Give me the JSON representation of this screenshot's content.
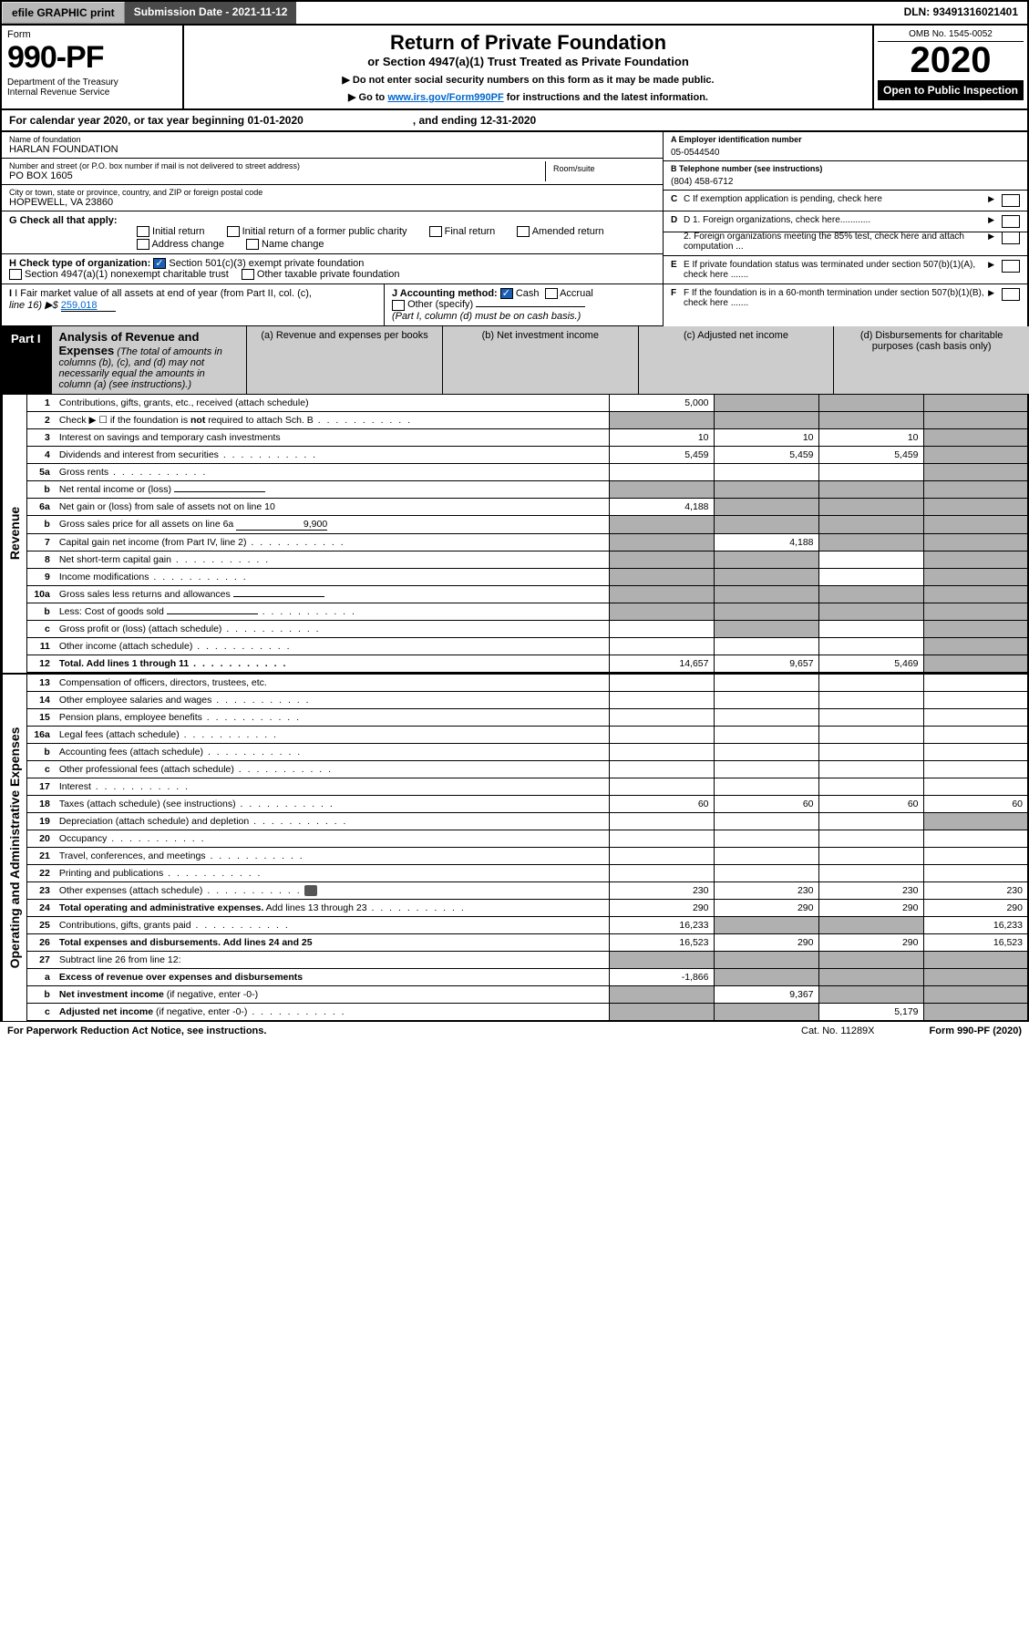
{
  "topbar": {
    "efile": "efile GRAPHIC print",
    "submission": "Submission Date - 2021-11-12",
    "dln": "DLN: 93491316021401"
  },
  "header": {
    "form_label": "Form",
    "form_num": "990-PF",
    "dept": "Department of the Treasury\nInternal Revenue Service",
    "title": "Return of Private Foundation",
    "subtitle": "or Section 4947(a)(1) Trust Treated as Private Foundation",
    "note1": "▶ Do not enter social security numbers on this form as it may be made public.",
    "note2_pre": "▶ Go to ",
    "note2_link": "www.irs.gov/Form990PF",
    "note2_post": " for instructions and the latest information.",
    "omb": "OMB No. 1545-0052",
    "year": "2020",
    "open": "Open to Public Inspection"
  },
  "cal": {
    "text": "For calendar year 2020, or tax year beginning 01-01-2020",
    "ending": ", and ending 12-31-2020"
  },
  "ident": {
    "name_lbl": "Name of foundation",
    "name": "HARLAN FOUNDATION",
    "addr_lbl": "Number and street (or P.O. box number if mail is not delivered to street address)",
    "addr": "PO BOX 1605",
    "room_lbl": "Room/suite",
    "city_lbl": "City or town, state or province, country, and ZIP or foreign postal code",
    "city": "HOPEWELL, VA  23860",
    "a_lbl": "A Employer identification number",
    "a_val": "05-0544540",
    "b_lbl": "B Telephone number (see instructions)",
    "b_val": "(804) 458-6712",
    "c_lbl": "C If exemption application is pending, check here",
    "d1_lbl": "D 1. Foreign organizations, check here............",
    "d2_lbl": "2. Foreign organizations meeting the 85% test, check here and attach computation ...",
    "e_lbl": "E  If private foundation status was terminated under section 507(b)(1)(A), check here .......",
    "f_lbl": "F  If the foundation is in a 60-month termination under section 507(b)(1)(B), check here .......",
    "g_lbl": "G Check all that apply:",
    "g_opts": [
      "Initial return",
      "Initial return of a former public charity",
      "Final return",
      "Amended return",
      "Address change",
      "Name change"
    ],
    "h_lbl": "H Check type of organization:",
    "h_opts": [
      "Section 501(c)(3) exempt private foundation",
      "Section 4947(a)(1) nonexempt charitable trust",
      "Other taxable private foundation"
    ],
    "i_lbl": "I Fair market value of all assets at end of year (from Part II, col. (c),",
    "i_line": "line 16) ▶$",
    "i_val": "259,018",
    "j_lbl": "J Accounting method:",
    "j_opts": [
      "Cash",
      "Accrual"
    ],
    "j_other": "Other (specify)",
    "j_note": "(Part I, column (d) must be on cash basis.)"
  },
  "part1": {
    "tag": "Part I",
    "title": "Analysis of Revenue and Expenses",
    "sub": "(The total of amounts in columns (b), (c), and (d) may not necessarily equal the amounts in column (a) (see instructions).)",
    "cols": {
      "a": "(a)    Revenue and expenses per books",
      "b": "(b)    Net investment income",
      "c": "(c)    Adjusted net income",
      "d": "(d)   Disbursements for charitable purposes (cash basis only)"
    },
    "side_rev": "Revenue",
    "side_exp": "Operating and Administrative Expenses"
  },
  "rows": [
    {
      "n": "1",
      "lbl": "Contributions, gifts, grants, etc., received (attach schedule)",
      "a": "5,000",
      "grey": [
        "b",
        "c",
        "d"
      ]
    },
    {
      "n": "2",
      "lbl": "Check ▶ ☐ if the foundation is <b>not</b> required to attach Sch. B",
      "dots": true,
      "grey": [
        "a",
        "b",
        "c",
        "d"
      ]
    },
    {
      "n": "3",
      "lbl": "Interest on savings and temporary cash investments",
      "a": "10",
      "b": "10",
      "c": "10",
      "grey": [
        "d"
      ]
    },
    {
      "n": "4",
      "lbl": "Dividends and interest from securities",
      "a": "5,459",
      "b": "5,459",
      "c": "5,459",
      "dots": true,
      "grey": [
        "d"
      ]
    },
    {
      "n": "5a",
      "lbl": "Gross rents",
      "dots": true,
      "grey": [
        "d"
      ]
    },
    {
      "n": "b",
      "lbl": "Net rental income or (loss)",
      "inline": true,
      "grey": [
        "a",
        "b",
        "c",
        "d"
      ]
    },
    {
      "n": "6a",
      "lbl": "Net gain or (loss) from sale of assets not on line 10",
      "a": "4,188",
      "grey": [
        "b",
        "c",
        "d"
      ]
    },
    {
      "n": "b",
      "lbl": "Gross sales price for all assets on line 6a",
      "inline": true,
      "inline_val": "9,900",
      "grey": [
        "a",
        "b",
        "c",
        "d"
      ]
    },
    {
      "n": "7",
      "lbl": "Capital gain net income (from Part IV, line 2)",
      "dots": true,
      "b": "4,188",
      "grey": [
        "a",
        "c",
        "d"
      ]
    },
    {
      "n": "8",
      "lbl": "Net short-term capital gain",
      "dots": true,
      "grey": [
        "a",
        "b",
        "d"
      ]
    },
    {
      "n": "9",
      "lbl": "Income modifications",
      "dots": true,
      "grey": [
        "a",
        "b",
        "d"
      ]
    },
    {
      "n": "10a",
      "lbl": "Gross sales less returns and allowances",
      "inline": true,
      "grey": [
        "a",
        "b",
        "c",
        "d"
      ]
    },
    {
      "n": "b",
      "lbl": "Less: Cost of goods sold",
      "inline": true,
      "dots": true,
      "grey": [
        "a",
        "b",
        "c",
        "d"
      ]
    },
    {
      "n": "c",
      "lbl": "Gross profit or (loss) (attach schedule)",
      "dots": true,
      "grey": [
        "b",
        "d"
      ]
    },
    {
      "n": "11",
      "lbl": "Other income (attach schedule)",
      "dots": true,
      "grey": [
        "d"
      ]
    },
    {
      "n": "12",
      "lbl": "<b>Total.</b> Add lines 1 through 11",
      "dots": true,
      "a": "14,657",
      "b": "9,657",
      "c": "5,469",
      "grey": [
        "d"
      ],
      "bold": true
    }
  ],
  "exp_rows": [
    {
      "n": "13",
      "lbl": "Compensation of officers, directors, trustees, etc."
    },
    {
      "n": "14",
      "lbl": "Other employee salaries and wages",
      "dots": true
    },
    {
      "n": "15",
      "lbl": "Pension plans, employee benefits",
      "dots": true
    },
    {
      "n": "16a",
      "lbl": "Legal fees (attach schedule)",
      "dots": true
    },
    {
      "n": "b",
      "lbl": "Accounting fees (attach schedule)",
      "dots": true
    },
    {
      "n": "c",
      "lbl": "Other professional fees (attach schedule)",
      "dots": true
    },
    {
      "n": "17",
      "lbl": "Interest",
      "dots": true
    },
    {
      "n": "18",
      "lbl": "Taxes (attach schedule) (see instructions)",
      "dots": true,
      "a": "60",
      "b": "60",
      "c": "60",
      "d": "60"
    },
    {
      "n": "19",
      "lbl": "Depreciation (attach schedule) and depletion",
      "dots": true,
      "grey": [
        "d"
      ]
    },
    {
      "n": "20",
      "lbl": "Occupancy",
      "dots": true
    },
    {
      "n": "21",
      "lbl": "Travel, conferences, and meetings",
      "dots": true
    },
    {
      "n": "22",
      "lbl": "Printing and publications",
      "dots": true
    },
    {
      "n": "23",
      "lbl": "Other expenses (attach schedule)",
      "dots": true,
      "attach": true,
      "a": "230",
      "b": "230",
      "c": "230",
      "d": "230"
    },
    {
      "n": "24",
      "lbl": "<b>Total operating and administrative expenses.</b> Add lines 13 through 23",
      "dots": true,
      "a": "290",
      "b": "290",
      "c": "290",
      "d": "290"
    },
    {
      "n": "25",
      "lbl": "Contributions, gifts, grants paid",
      "dots": true,
      "a": "16,233",
      "d": "16,233",
      "grey": [
        "b",
        "c"
      ]
    },
    {
      "n": "26",
      "lbl": "<b>Total expenses and disbursements.</b> Add lines 24 and 25",
      "a": "16,523",
      "b": "290",
      "c": "290",
      "d": "16,523",
      "bold": true
    },
    {
      "n": "27",
      "lbl": "Subtract line 26 from line 12:",
      "grey": [
        "a",
        "b",
        "c",
        "d"
      ]
    },
    {
      "n": "a",
      "lbl": "<b>Excess of revenue over expenses and disbursements</b>",
      "a": "-1,866",
      "grey": [
        "b",
        "c",
        "d"
      ]
    },
    {
      "n": "b",
      "lbl": "<b>Net investment income</b> (if negative, enter -0-)",
      "b": "9,367",
      "grey": [
        "a",
        "c",
        "d"
      ]
    },
    {
      "n": "c",
      "lbl": "<b>Adjusted net income</b> (if negative, enter -0-)",
      "dots": true,
      "c": "5,179",
      "grey": [
        "a",
        "b",
        "d"
      ]
    }
  ],
  "footer": {
    "pra": "For Paperwork Reduction Act Notice, see instructions.",
    "cat": "Cat. No. 11289X",
    "form": "Form 990-PF (2020)"
  }
}
